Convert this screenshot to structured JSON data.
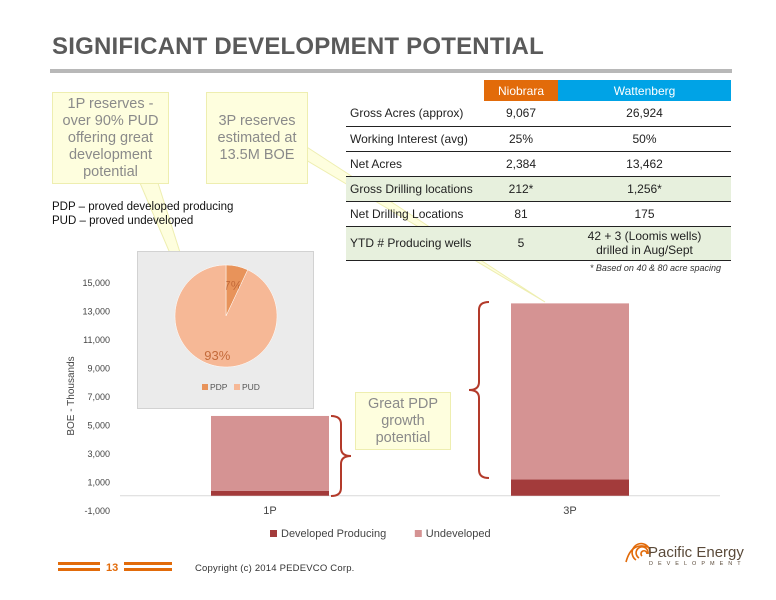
{
  "slide": {
    "title": "SIGNIFICANT DEVELOPMENT POTENTIAL",
    "page_number": "13",
    "copyright": "Copyright (c) 2014 PEDEVCO Corp."
  },
  "logo": {
    "name": "Pacific Energy",
    "subtitle": "DEVELOPMENT",
    "icon": "spiral-shell-icon"
  },
  "callouts": {
    "reserves_1p": [
      "1P reserves -",
      "over 90% PUD",
      "offering great",
      "development",
      "potential"
    ],
    "reserves_3p": [
      "3P reserves",
      "estimated at",
      "13.5M BOE"
    ],
    "pdp_growth": [
      "Great PDP",
      "growth",
      "potential"
    ]
  },
  "definitions": [
    "PDP – proved developed producing",
    "PUD – proved undeveloped"
  ],
  "wells_table": {
    "headers": [
      "",
      "Niobrara",
      "Wattenberg"
    ],
    "rows": [
      {
        "label": "Gross Acres (approx)",
        "niobrara": "9,067",
        "wattenberg": "26,924"
      },
      {
        "label": "Working Interest (avg)",
        "niobrara": "25%",
        "wattenberg": "50%"
      },
      {
        "label": "Net Acres",
        "niobrara": "2,384",
        "wattenberg": "13,462"
      },
      {
        "label": "Gross Drilling locations",
        "niobrara": "212*",
        "wattenberg": "1,256*"
      },
      {
        "label": "Net Drilling Locations",
        "niobrara": "81",
        "wattenberg": "175"
      },
      {
        "label": "YTD # Producing wells",
        "niobrara": "5",
        "wattenberg_lines": [
          "42 + 3 (Loomis wells)",
          "drilled in Aug/Sept"
        ]
      }
    ],
    "footnote": "* Based on 40 & 80 acre spacing"
  },
  "chart_data": [
    {
      "type": "bar",
      "stacked": true,
      "categories": [
        "1P",
        "3P"
      ],
      "series": [
        {
          "name": "Developed Producing",
          "values": [
            350,
            1150
          ],
          "color": "#a33b3b"
        },
        {
          "name": "Undeveloped",
          "values": [
            5250,
            12350
          ],
          "color": "#d59393"
        }
      ],
      "ylabel": "BOE - Thousands",
      "ylim": [
        -1000,
        15000
      ],
      "yticks": [
        "-1,000",
        "1,000",
        "3,000",
        "5,000",
        "7,000",
        "9,000",
        "11,000",
        "13,000",
        "15,000"
      ],
      "grid": false,
      "legend": "bottom"
    },
    {
      "type": "pie",
      "slices": [
        {
          "name": "PDP",
          "value": 7,
          "label": "7%",
          "color": "#e8935a"
        },
        {
          "name": "PUD",
          "value": 93,
          "label": "93%",
          "color": "#f6b896"
        }
      ],
      "legend": "bottom"
    }
  ]
}
